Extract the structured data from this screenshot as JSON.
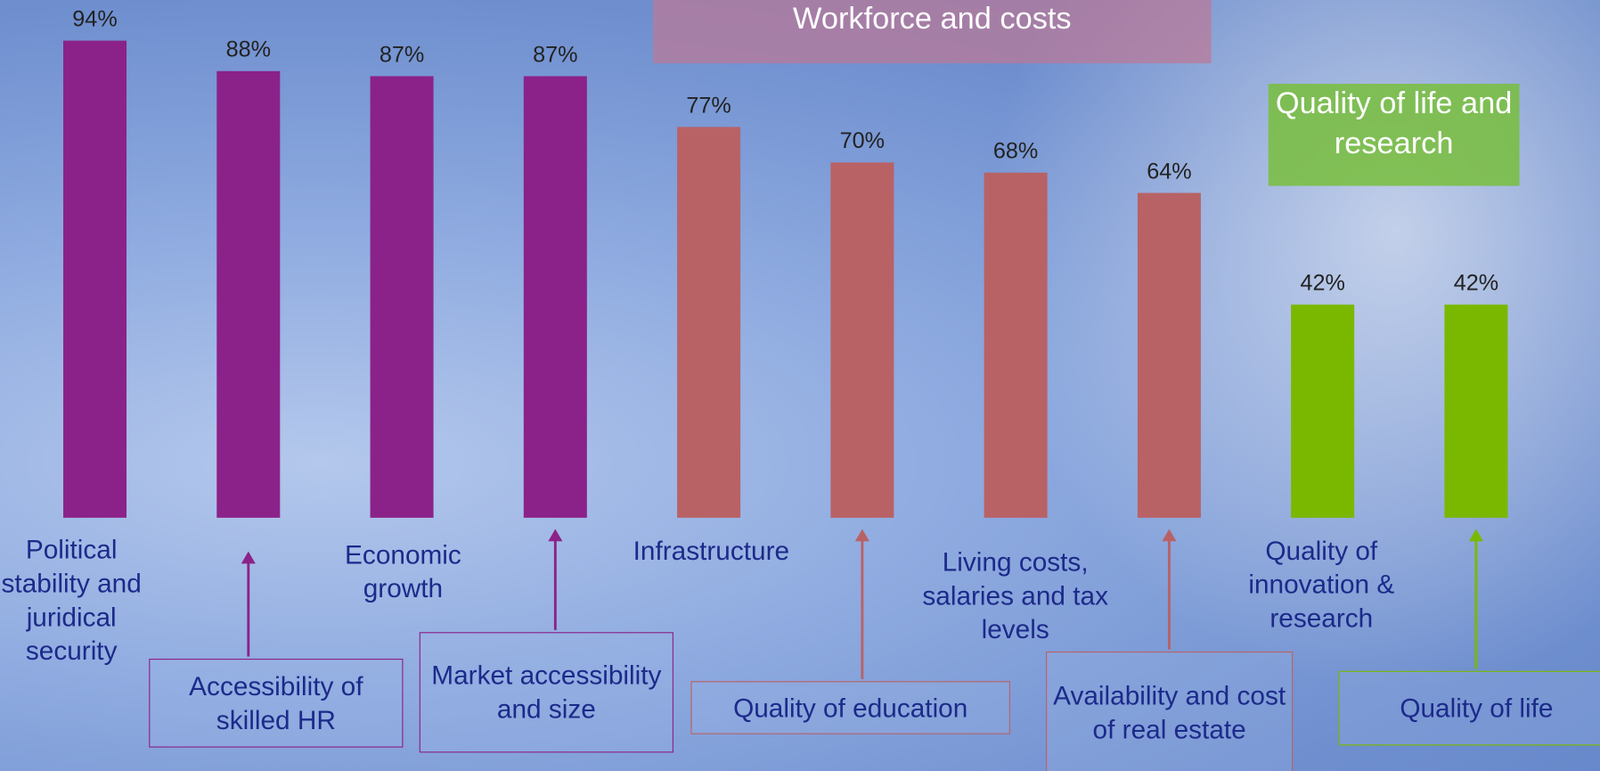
{
  "chart_data": {
    "type": "bar",
    "categories": [
      "Political stability and juridical security",
      "Accessibility of skilled HR",
      "Economic growth",
      "Market accessibility and size",
      "Infrastructure",
      "Quality of education",
      "Living costs, salaries and tax levels",
      "Availability and cost of real estate",
      "Quality of innovation & research",
      "Quality of life"
    ],
    "values": [
      94,
      88,
      87,
      87,
      77,
      70,
      68,
      64,
      42,
      42
    ],
    "value_labels": [
      "94%",
      "88%",
      "87%",
      "87%",
      "77%",
      "70%",
      "68%",
      "64%",
      "42%",
      "42%"
    ],
    "colors": [
      "#8b2289",
      "#8b2289",
      "#8b2289",
      "#8b2289",
      "#b86266",
      "#b86266",
      "#b86266",
      "#b86266",
      "#7ab800",
      "#7ab800"
    ],
    "group_labels": [
      "Workforce and costs",
      "Quality of life and research"
    ],
    "ylim": [
      0,
      100
    ]
  }
}
